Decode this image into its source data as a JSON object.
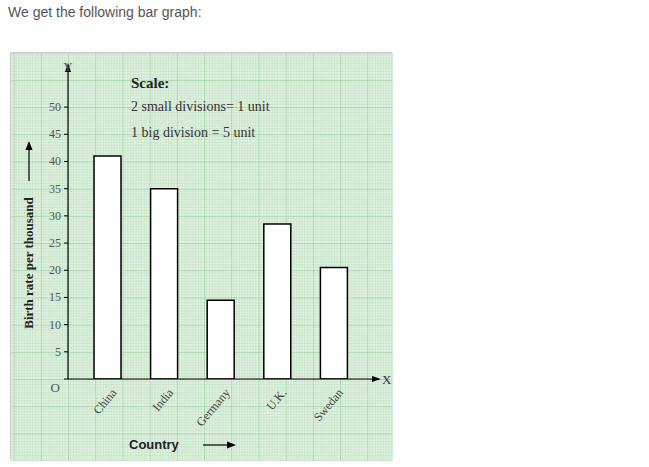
{
  "caption": "We get the following bar graph:",
  "chart_data": {
    "type": "bar",
    "x_label": "Country",
    "y_label": "Birth rate per thousand",
    "annotations": [
      "Scale:",
      "2 small divisions= 1 unit",
      "1 big division = 5 unit"
    ],
    "axis_names": {
      "x": "X",
      "y": "Y"
    },
    "categories": [
      "China",
      "India",
      "Germany",
      "U.K.",
      "Swedan"
    ],
    "values": [
      41,
      35,
      14.5,
      28.5,
      20.5
    ],
    "color": "#ffffff",
    "ylim": [
      0,
      57
    ],
    "yticks": [
      {
        "value": 0,
        "label": "O"
      },
      5,
      10,
      15,
      20,
      25,
      30,
      35,
      40,
      45,
      50
    ],
    "grid": true
  }
}
